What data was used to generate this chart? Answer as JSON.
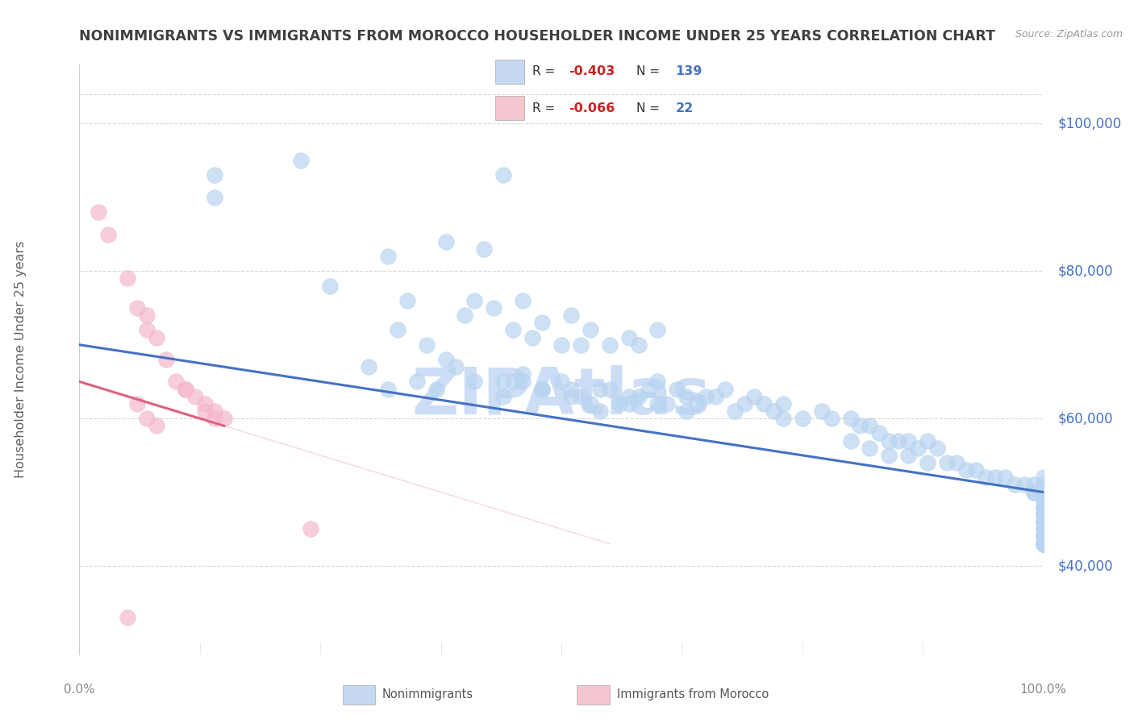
{
  "title": "NONIMMIGRANTS VS IMMIGRANTS FROM MOROCCO HOUSEHOLDER INCOME UNDER 25 YEARS CORRELATION CHART",
  "source": "Source: ZipAtlas.com",
  "ylabel": "Householder Income Under 25 years",
  "xlim": [
    0,
    100
  ],
  "ylim": [
    28000,
    108000
  ],
  "yticks": [
    40000,
    60000,
    80000,
    100000
  ],
  "ytick_labels": [
    "$40,000",
    "$60,000",
    "$80,000",
    "$100,000"
  ],
  "xtick_labels": [
    "0.0%",
    "100.0%"
  ],
  "blue_color": "#b8d4f0",
  "pink_color": "#f4b8cc",
  "blue_line_color": "#4472c4",
  "pink_line_color": "#e06080",
  "legend_box_blue": "#c5d9f0",
  "legend_box_pink": "#f5c5d0",
  "R1": -0.403,
  "N1": 139,
  "R2": -0.066,
  "N2": 22,
  "blue_reg_x0": 0,
  "blue_reg_x1": 100,
  "blue_reg_y0": 70000,
  "blue_reg_y1": 50000,
  "pink_reg_x0": 0,
  "pink_reg_x1": 15,
  "pink_reg_y0": 65000,
  "pink_reg_y1": 59000,
  "pink_ext_x1": 55,
  "watermark": "ZIPAtlas",
  "watermark_color": "#ccddf5",
  "bg_color": "#ffffff",
  "grid_color": "#d8d8d8",
  "title_color": "#404040",
  "ylabel_color": "#606060",
  "yaxis_label_color": "#4472c4",
  "source_color": "#999999"
}
